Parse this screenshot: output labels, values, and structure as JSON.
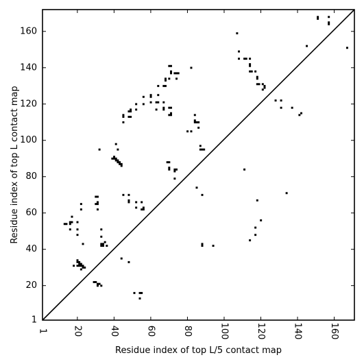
{
  "chart_data": {
    "type": "scatter",
    "title": "",
    "xlabel": "Residue index of top L/5 contact map",
    "ylabel": "Residue index of top L contact map",
    "xlim": [
      1,
      171
    ],
    "ylim": [
      1,
      172
    ],
    "xticks": [
      1,
      20,
      40,
      60,
      80,
      100,
      120,
      140,
      160
    ],
    "yticks": [
      1,
      20,
      40,
      60,
      80,
      100,
      120,
      140,
      160
    ],
    "grid": false,
    "marker": "square",
    "marker_color": "#000000",
    "diagonal_line": {
      "from": [
        1,
        1
      ],
      "to": [
        171,
        172
      ]
    },
    "series": [
      {
        "name": "",
        "points": [
          [
            13,
            54
          ],
          [
            14,
            54
          ],
          [
            16,
            54
          ],
          [
            16,
            55
          ],
          [
            17,
            55
          ],
          [
            16,
            51
          ],
          [
            17,
            58
          ],
          [
            18,
            31
          ],
          [
            20,
            34
          ],
          [
            20,
            33
          ],
          [
            21,
            33
          ],
          [
            21,
            32
          ],
          [
            22,
            32
          ],
          [
            22,
            31
          ],
          [
            23,
            31
          ],
          [
            23,
            30
          ],
          [
            24,
            30
          ],
          [
            22,
            29
          ],
          [
            20,
            31
          ],
          [
            21,
            31
          ],
          [
            20,
            55
          ],
          [
            20,
            51
          ],
          [
            20,
            48
          ],
          [
            22,
            62
          ],
          [
            22,
            65
          ],
          [
            23,
            43
          ],
          [
            29,
            22
          ],
          [
            30,
            22
          ],
          [
            31,
            21
          ],
          [
            31,
            20
          ],
          [
            32,
            21
          ],
          [
            33,
            20
          ],
          [
            31,
            62
          ],
          [
            30,
            65
          ],
          [
            31,
            65
          ],
          [
            31,
            66
          ],
          [
            30,
            69
          ],
          [
            31,
            69
          ],
          [
            33,
            42
          ],
          [
            33,
            43
          ],
          [
            34,
            42
          ],
          [
            34,
            43
          ],
          [
            35,
            44
          ],
          [
            36,
            42
          ],
          [
            33,
            47
          ],
          [
            33,
            51
          ],
          [
            32,
            95
          ],
          [
            39,
            90
          ],
          [
            40,
            90
          ],
          [
            40,
            91
          ],
          [
            41,
            89
          ],
          [
            41,
            90
          ],
          [
            42,
            88
          ],
          [
            42,
            89
          ],
          [
            43,
            88
          ],
          [
            43,
            87
          ],
          [
            44,
            87
          ],
          [
            44,
            86
          ],
          [
            41,
            98
          ],
          [
            42,
            95
          ],
          [
            44,
            35
          ],
          [
            45,
            70
          ],
          [
            45,
            110
          ],
          [
            45,
            113
          ],
          [
            45,
            114
          ],
          [
            48,
            113
          ],
          [
            49,
            113
          ],
          [
            48,
            116
          ],
          [
            49,
            116
          ],
          [
            49,
            117
          ],
          [
            48,
            70
          ],
          [
            48,
            66
          ],
          [
            48,
            67
          ],
          [
            48,
            33
          ],
          [
            52,
            66
          ],
          [
            52,
            63
          ],
          [
            51,
            16
          ],
          [
            54,
            16
          ],
          [
            55,
            16
          ],
          [
            54,
            13
          ],
          [
            55,
            62
          ],
          [
            56,
            62
          ],
          [
            56,
            63
          ],
          [
            55,
            66
          ],
          [
            52,
            117
          ],
          [
            52,
            120
          ],
          [
            56,
            120
          ],
          [
            56,
            124
          ],
          [
            60,
            121
          ],
          [
            60,
            124
          ],
          [
            60,
            125
          ],
          [
            63,
            121
          ],
          [
            64,
            121
          ],
          [
            63,
            117
          ],
          [
            64,
            125
          ],
          [
            64,
            130
          ],
          [
            67,
            121
          ],
          [
            67,
            117
          ],
          [
            67,
            118
          ],
          [
            67,
            130
          ],
          [
            68,
            130
          ],
          [
            68,
            133
          ],
          [
            68,
            134
          ],
          [
            70,
            114
          ],
          [
            71,
            114
          ],
          [
            71,
            115
          ],
          [
            70,
            118
          ],
          [
            71,
            118
          ],
          [
            70,
            134
          ],
          [
            71,
            137
          ],
          [
            71,
            138
          ],
          [
            70,
            141
          ],
          [
            71,
            141
          ],
          [
            73,
            137
          ],
          [
            74,
            137
          ],
          [
            75,
            137
          ],
          [
            74,
            134
          ],
          [
            69,
            88
          ],
          [
            70,
            88
          ],
          [
            70,
            84
          ],
          [
            70,
            85
          ],
          [
            73,
            84
          ],
          [
            74,
            84
          ],
          [
            73,
            83
          ],
          [
            73,
            79
          ],
          [
            80,
            105
          ],
          [
            82,
            105
          ],
          [
            82,
            140
          ],
          [
            84,
            110
          ],
          [
            84,
            114
          ],
          [
            85,
            110
          ],
          [
            84,
            111
          ],
          [
            86,
            110
          ],
          [
            86,
            107
          ],
          [
            85,
            74
          ],
          [
            87,
            97
          ],
          [
            87,
            95
          ],
          [
            88,
            95
          ],
          [
            89,
            95
          ],
          [
            88,
            70
          ],
          [
            88,
            42
          ],
          [
            88,
            43
          ],
          [
            94,
            42
          ],
          [
            107,
            159
          ],
          [
            108,
            149
          ],
          [
            108,
            145
          ],
          [
            111,
            145
          ],
          [
            112,
            145
          ],
          [
            111,
            84
          ],
          [
            114,
            145
          ],
          [
            114,
            142
          ],
          [
            114,
            141
          ],
          [
            114,
            138
          ],
          [
            115,
            138
          ],
          [
            117,
            138
          ],
          [
            118,
            135
          ],
          [
            118,
            134
          ],
          [
            118,
            131
          ],
          [
            119,
            131
          ],
          [
            121,
            131
          ],
          [
            122,
            130
          ],
          [
            121,
            128
          ],
          [
            122,
            129
          ],
          [
            117,
            52
          ],
          [
            117,
            48
          ],
          [
            118,
            67
          ],
          [
            120,
            56
          ],
          [
            114,
            45
          ],
          [
            128,
            122
          ],
          [
            131,
            122
          ],
          [
            131,
            118
          ],
          [
            134,
            71
          ],
          [
            137,
            118
          ],
          [
            141,
            114
          ],
          [
            142,
            115
          ],
          [
            145,
            152
          ],
          [
            151,
            167
          ],
          [
            151,
            168
          ],
          [
            157,
            164
          ],
          [
            157,
            165
          ],
          [
            157,
            168
          ],
          [
            167,
            151
          ]
        ]
      }
    ]
  }
}
